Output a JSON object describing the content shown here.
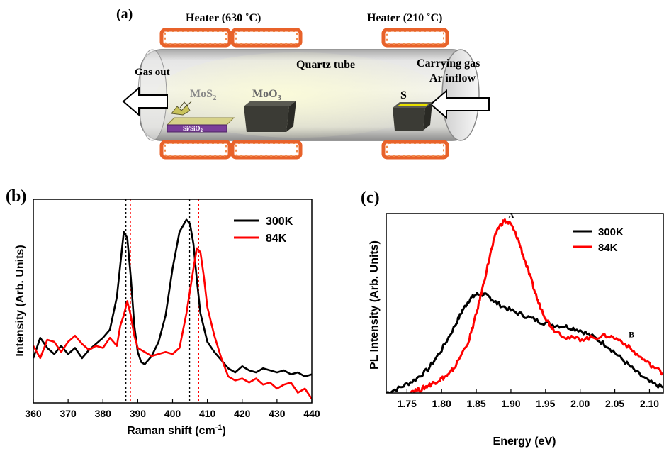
{
  "panel_a": {
    "label": "(a)",
    "heater_left": "Heater (630 ˚C)",
    "heater_right": "Heater (210 ˚C)",
    "gas_out": "Gas out",
    "quartz_tube": "Quartz tube",
    "carrying_gas_line1": "Carrying gas",
    "carrying_gas_line2": "Ar inflow",
    "mos2_base": "MoS",
    "mos2_sub": "2",
    "substrate_base": "Si/SiO",
    "substrate_sub": "2",
    "moo3_base": "MoO",
    "moo3_sub": "3",
    "sulfur": "S"
  },
  "chart_data": [
    {
      "type": "line",
      "panel_label": "(b)",
      "title": "",
      "xlabel": "Raman shift (cm",
      "xlabel_sup": "-1",
      "xlabel_end": ")",
      "ylabel": "Intensity (Arb. Units)",
      "xlim": [
        360,
        440
      ],
      "ylim": [
        0,
        1
      ],
      "xticks": [
        "360",
        "370",
        "380",
        "390",
        "400",
        "410",
        "420",
        "430",
        "440"
      ],
      "legend_position": "top-right",
      "vlines": [
        {
          "x": 386.6,
          "color": "#000000"
        },
        {
          "x": 387.9,
          "color": "#ff0000"
        },
        {
          "x": 404.9,
          "color": "#000000"
        },
        {
          "x": 407.5,
          "color": "#ff0000"
        }
      ],
      "series": [
        {
          "name": "300K",
          "color": "#000000",
          "points": [
            [
              360,
              0.22
            ],
            [
              362,
              0.32
            ],
            [
              364,
              0.27
            ],
            [
              366,
              0.24
            ],
            [
              368,
              0.28
            ],
            [
              370,
              0.24
            ],
            [
              372,
              0.27
            ],
            [
              374,
              0.22
            ],
            [
              376,
              0.26
            ],
            [
              378,
              0.29
            ],
            [
              380,
              0.32
            ],
            [
              382,
              0.36
            ],
            [
              384,
              0.52
            ],
            [
              385,
              0.68
            ],
            [
              386,
              0.84
            ],
            [
              387,
              0.81
            ],
            [
              388,
              0.62
            ],
            [
              389,
              0.38
            ],
            [
              390,
              0.25
            ],
            [
              391,
              0.2
            ],
            [
              392,
              0.19
            ],
            [
              394,
              0.23
            ],
            [
              396,
              0.3
            ],
            [
              398,
              0.43
            ],
            [
              400,
              0.66
            ],
            [
              402,
              0.84
            ],
            [
              404,
              0.9
            ],
            [
              405,
              0.88
            ],
            [
              406,
              0.78
            ],
            [
              407,
              0.6
            ],
            [
              408,
              0.44
            ],
            [
              410,
              0.3
            ],
            [
              412,
              0.25
            ],
            [
              414,
              0.21
            ],
            [
              416,
              0.17
            ],
            [
              418,
              0.15
            ],
            [
              420,
              0.18
            ],
            [
              422,
              0.16
            ],
            [
              424,
              0.15
            ],
            [
              426,
              0.17
            ],
            [
              428,
              0.16
            ],
            [
              430,
              0.15
            ],
            [
              432,
              0.16
            ],
            [
              434,
              0.14
            ],
            [
              436,
              0.15
            ],
            [
              438,
              0.13
            ],
            [
              440,
              0.14
            ]
          ]
        },
        {
          "name": "84K",
          "color": "#ff0000",
          "points": [
            [
              360,
              0.28
            ],
            [
              362,
              0.22
            ],
            [
              364,
              0.31
            ],
            [
              366,
              0.3
            ],
            [
              368,
              0.25
            ],
            [
              370,
              0.3
            ],
            [
              372,
              0.33
            ],
            [
              374,
              0.29
            ],
            [
              376,
              0.26
            ],
            [
              378,
              0.28
            ],
            [
              380,
              0.27
            ],
            [
              382,
              0.32
            ],
            [
              384,
              0.28
            ],
            [
              385,
              0.38
            ],
            [
              386,
              0.43
            ],
            [
              387,
              0.5
            ],
            [
              388,
              0.43
            ],
            [
              389,
              0.33
            ],
            [
              390,
              0.27
            ],
            [
              392,
              0.25
            ],
            [
              394,
              0.23
            ],
            [
              396,
              0.24
            ],
            [
              398,
              0.25
            ],
            [
              400,
              0.24
            ],
            [
              402,
              0.27
            ],
            [
              404,
              0.44
            ],
            [
              406,
              0.66
            ],
            [
              407,
              0.76
            ],
            [
              408,
              0.74
            ],
            [
              409,
              0.62
            ],
            [
              410,
              0.47
            ],
            [
              412,
              0.33
            ],
            [
              414,
              0.22
            ],
            [
              416,
              0.13
            ],
            [
              418,
              0.11
            ],
            [
              420,
              0.12
            ],
            [
              422,
              0.1
            ],
            [
              424,
              0.12
            ],
            [
              426,
              0.09
            ],
            [
              428,
              0.1
            ],
            [
              430,
              0.07
            ],
            [
              432,
              0.09
            ],
            [
              434,
              0.1
            ],
            [
              436,
              0.05
            ],
            [
              438,
              0.07
            ],
            [
              440,
              0.02
            ]
          ]
        }
      ]
    },
    {
      "type": "line",
      "panel_label": "(c)",
      "title": "",
      "xlabel": "Energy (eV)",
      "ylabel": "PL Intensity (Arb. Units)",
      "xlim": [
        1.72,
        2.12
      ],
      "ylim": [
        0,
        1
      ],
      "xticks": [
        "1.75",
        "1.80",
        "1.85",
        "1.90",
        "1.95",
        "2.00",
        "2.05",
        "2.10"
      ],
      "legend_position": "top-right",
      "annotations": [
        {
          "text": "A",
          "x": 1.896,
          "y": 0.975
        },
        {
          "text": "B",
          "x": 2.07,
          "y": 0.31
        }
      ],
      "series": [
        {
          "name": "300K",
          "color": "#000000",
          "points": [
            [
              1.72,
              0.0
            ],
            [
              1.74,
              0.03
            ],
            [
              1.76,
              0.07
            ],
            [
              1.78,
              0.13
            ],
            [
              1.8,
              0.24
            ],
            [
              1.82,
              0.38
            ],
            [
              1.83,
              0.46
            ],
            [
              1.84,
              0.52
            ],
            [
              1.85,
              0.55
            ],
            [
              1.86,
              0.55
            ],
            [
              1.87,
              0.53
            ],
            [
              1.88,
              0.5
            ],
            [
              1.9,
              0.46
            ],
            [
              1.92,
              0.43
            ],
            [
              1.94,
              0.4
            ],
            [
              1.96,
              0.38
            ],
            [
              1.98,
              0.37
            ],
            [
              2.0,
              0.35
            ],
            [
              2.02,
              0.31
            ],
            [
              2.04,
              0.26
            ],
            [
              2.06,
              0.19
            ],
            [
              2.08,
              0.12
            ],
            [
              2.1,
              0.06
            ],
            [
              2.12,
              0.03
            ]
          ]
        },
        {
          "name": "84K",
          "color": "#ff0000",
          "points": [
            [
              1.755,
              0.01
            ],
            [
              1.77,
              0.02
            ],
            [
              1.78,
              0.04
            ],
            [
              1.79,
              0.06
            ],
            [
              1.8,
              0.08
            ],
            [
              1.81,
              0.1
            ],
            [
              1.82,
              0.15
            ],
            [
              1.84,
              0.3
            ],
            [
              1.85,
              0.44
            ],
            [
              1.86,
              0.6
            ],
            [
              1.87,
              0.77
            ],
            [
              1.88,
              0.91
            ],
            [
              1.89,
              0.96
            ],
            [
              1.9,
              0.94
            ],
            [
              1.91,
              0.86
            ],
            [
              1.92,
              0.74
            ],
            [
              1.93,
              0.62
            ],
            [
              1.94,
              0.5
            ],
            [
              1.95,
              0.42
            ],
            [
              1.96,
              0.36
            ],
            [
              1.98,
              0.31
            ],
            [
              2.0,
              0.3
            ],
            [
              2.02,
              0.31
            ],
            [
              2.04,
              0.32
            ],
            [
              2.06,
              0.29
            ],
            [
              2.08,
              0.22
            ],
            [
              2.1,
              0.16
            ],
            [
              2.12,
              0.11
            ]
          ]
        }
      ]
    }
  ],
  "colors": {
    "heater": "#e8622a",
    "tube_glow": "#f4f3c4",
    "substrate": "#7b3f9a",
    "boat": "#3b3b35",
    "sulfur": "#e8e000"
  }
}
